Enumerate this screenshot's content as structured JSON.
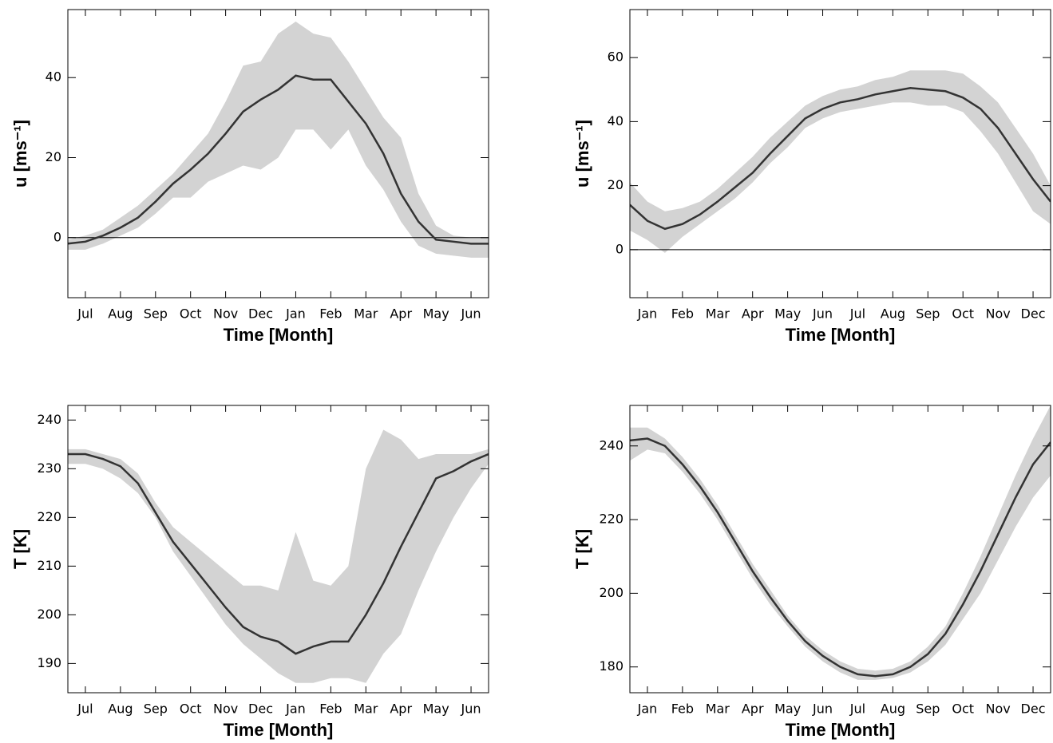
{
  "chart_data": [
    {
      "type": "line",
      "ylabel": "u [ms⁻¹]",
      "xlabel": "Time [Month]",
      "zero_line": true,
      "x": [
        0,
        0.5,
        1,
        1.5,
        2,
        2.5,
        3,
        3.5,
        4,
        4.5,
        5,
        5.5,
        6,
        6.5,
        7,
        7.5,
        8,
        8.5,
        9,
        9.5,
        10,
        10.5,
        11,
        11.5,
        12
      ],
      "xlim": [
        0,
        12
      ],
      "xticks": [
        {
          "value": 0.5,
          "label": "Jul"
        },
        {
          "value": 1.5,
          "label": "Aug"
        },
        {
          "value": 2.5,
          "label": "Sep"
        },
        {
          "value": 3.5,
          "label": "Oct"
        },
        {
          "value": 4.5,
          "label": "Nov"
        },
        {
          "value": 5.5,
          "label": "Dec"
        },
        {
          "value": 6.5,
          "label": "Jan"
        },
        {
          "value": 7.5,
          "label": "Feb"
        },
        {
          "value": 8.5,
          "label": "Mar"
        },
        {
          "value": 9.5,
          "label": "Apr"
        },
        {
          "value": 10.5,
          "label": "May"
        },
        {
          "value": 11.5,
          "label": "Jun"
        }
      ],
      "ylim": [
        -15,
        57
      ],
      "yticks": [
        0,
        20,
        40
      ],
      "band": {
        "color": "#d3d3d3",
        "lower": [
          -3,
          -3,
          -1.5,
          0.5,
          2.5,
          6,
          10,
          10,
          14,
          16,
          18,
          17,
          20,
          27,
          27,
          22,
          27,
          18,
          12,
          4,
          -2,
          -4,
          -4.5,
          -5,
          -5
        ],
        "upper": [
          -0.5,
          0.5,
          2,
          5,
          8,
          12,
          16,
          21,
          26,
          34,
          43,
          44,
          51,
          54,
          51,
          50,
          44,
          37,
          30,
          25,
          11,
          3,
          0.5,
          0,
          0
        ]
      },
      "series": [
        {
          "color": "#333333",
          "values": [
            -1.5,
            -1,
            0.5,
            2.5,
            5,
            9,
            13.5,
            17,
            21,
            26,
            31.5,
            34.5,
            37,
            40.5,
            39.5,
            39.5,
            34,
            28.5,
            21,
            11,
            4,
            -0.5,
            -1,
            -1.5,
            -1.5
          ]
        }
      ]
    },
    {
      "type": "line",
      "ylabel": "u [ms⁻¹]",
      "xlabel": "Time [Month]",
      "zero_line": true,
      "x": [
        0,
        0.5,
        1,
        1.5,
        2,
        2.5,
        3,
        3.5,
        4,
        4.5,
        5,
        5.5,
        6,
        6.5,
        7,
        7.5,
        8,
        8.5,
        9,
        9.5,
        10,
        10.5,
        11,
        11.5,
        12
      ],
      "xlim": [
        0,
        12
      ],
      "xticks": [
        {
          "value": 0.5,
          "label": "Jan"
        },
        {
          "value": 1.5,
          "label": "Feb"
        },
        {
          "value": 2.5,
          "label": "Mar"
        },
        {
          "value": 3.5,
          "label": "Apr"
        },
        {
          "value": 4.5,
          "label": "May"
        },
        {
          "value": 5.5,
          "label": "Jun"
        },
        {
          "value": 6.5,
          "label": "Jul"
        },
        {
          "value": 7.5,
          "label": "Aug"
        },
        {
          "value": 8.5,
          "label": "Sep"
        },
        {
          "value": 9.5,
          "label": "Oct"
        },
        {
          "value": 10.5,
          "label": "Nov"
        },
        {
          "value": 11.5,
          "label": "Dec"
        }
      ],
      "ylim": [
        -15,
        75
      ],
      "yticks": [
        0,
        20,
        40,
        60
      ],
      "band": {
        "color": "#d3d3d3",
        "lower": [
          6,
          3,
          -1,
          4,
          8,
          12,
          16,
          21,
          27,
          32,
          38,
          41,
          43,
          44,
          45,
          46,
          46,
          45,
          45,
          43,
          37,
          30,
          21,
          12,
          8
        ],
        "upper": [
          21,
          15,
          12,
          13,
          15,
          19,
          24,
          29,
          35,
          40,
          45,
          48,
          50,
          51,
          53,
          54,
          56,
          56,
          56,
          55,
          51,
          46,
          38,
          30,
          20
        ]
      },
      "series": [
        {
          "color": "#333333",
          "values": [
            14,
            9,
            6.5,
            8,
            11,
            15,
            19.5,
            24,
            30,
            35.5,
            41,
            44,
            46,
            47,
            48.5,
            49.5,
            50.5,
            50,
            49.5,
            47.5,
            44,
            38,
            30,
            22,
            15
          ]
        }
      ]
    },
    {
      "type": "line",
      "ylabel": "T [K]",
      "xlabel": "Time [Month]",
      "zero_line": false,
      "x": [
        0,
        0.5,
        1,
        1.5,
        2,
        2.5,
        3,
        3.5,
        4,
        4.5,
        5,
        5.5,
        6,
        6.5,
        7,
        7.5,
        8,
        8.5,
        9,
        9.5,
        10,
        10.5,
        11,
        11.5,
        12
      ],
      "xlim": [
        0,
        12
      ],
      "xticks": [
        {
          "value": 0.5,
          "label": "Jul"
        },
        {
          "value": 1.5,
          "label": "Aug"
        },
        {
          "value": 2.5,
          "label": "Sep"
        },
        {
          "value": 3.5,
          "label": "Oct"
        },
        {
          "value": 4.5,
          "label": "Nov"
        },
        {
          "value": 5.5,
          "label": "Dec"
        },
        {
          "value": 6.5,
          "label": "Jan"
        },
        {
          "value": 7.5,
          "label": "Feb"
        },
        {
          "value": 8.5,
          "label": "Mar"
        },
        {
          "value": 9.5,
          "label": "Apr"
        },
        {
          "value": 10.5,
          "label": "May"
        },
        {
          "value": 11.5,
          "label": "Jun"
        }
      ],
      "ylim": [
        184,
        243
      ],
      "yticks": [
        190,
        200,
        210,
        220,
        230,
        240
      ],
      "band": {
        "color": "#d3d3d3",
        "lower": [
          231,
          231,
          230,
          228,
          225,
          220,
          213,
          208,
          203,
          198,
          194,
          191,
          188,
          186,
          186,
          187,
          187,
          186,
          192,
          196,
          205,
          213,
          220,
          226,
          231
        ],
        "upper": [
          234,
          234,
          233,
          232,
          229,
          223,
          218,
          215,
          212,
          209,
          206,
          206,
          205,
          217,
          207,
          206,
          210,
          230,
          238,
          236,
          232,
          233,
          233,
          233,
          234
        ]
      },
      "series": [
        {
          "color": "#333333",
          "values": [
            233,
            233,
            232,
            230.5,
            227,
            221,
            215,
            210.5,
            206,
            201.5,
            197.5,
            195.5,
            194.5,
            192,
            193.5,
            194.5,
            194.5,
            200,
            206.5,
            214,
            221,
            228,
            229.5,
            231.5,
            233
          ]
        }
      ]
    },
    {
      "type": "line",
      "ylabel": "T [K]",
      "xlabel": "Time [Month]",
      "zero_line": false,
      "x": [
        0,
        0.5,
        1,
        1.5,
        2,
        2.5,
        3,
        3.5,
        4,
        4.5,
        5,
        5.5,
        6,
        6.5,
        7,
        7.5,
        8,
        8.5,
        9,
        9.5,
        10,
        10.5,
        11,
        11.5,
        12
      ],
      "xlim": [
        0,
        12
      ],
      "xticks": [
        {
          "value": 0.5,
          "label": "Jan"
        },
        {
          "value": 1.5,
          "label": "Feb"
        },
        {
          "value": 2.5,
          "label": "Mar"
        },
        {
          "value": 3.5,
          "label": "Apr"
        },
        {
          "value": 4.5,
          "label": "May"
        },
        {
          "value": 5.5,
          "label": "Jun"
        },
        {
          "value": 6.5,
          "label": "Jul"
        },
        {
          "value": 7.5,
          "label": "Aug"
        },
        {
          "value": 8.5,
          "label": "Sep"
        },
        {
          "value": 9.5,
          "label": "Oct"
        },
        {
          "value": 10.5,
          "label": "Nov"
        },
        {
          "value": 11.5,
          "label": "Dec"
        }
      ],
      "ylim": [
        173,
        251
      ],
      "yticks": [
        180,
        200,
        220,
        240
      ],
      "band": {
        "color": "#d3d3d3",
        "lower": [
          236,
          239,
          238,
          233,
          227,
          220,
          212,
          204,
          197,
          191,
          185.5,
          181.5,
          178.5,
          176.5,
          176.5,
          177,
          178.5,
          181.5,
          186,
          193,
          200,
          209,
          218,
          226,
          232
        ],
        "upper": [
          245,
          245,
          242,
          237,
          231,
          224,
          216,
          208,
          201,
          194,
          188.5,
          184.5,
          181.5,
          179.5,
          179,
          179.5,
          181.5,
          185.5,
          191,
          200,
          210,
          221,
          232,
          242,
          251
        ]
      },
      "series": [
        {
          "color": "#333333",
          "values": [
            241.5,
            242,
            240,
            235,
            229,
            222,
            214,
            206,
            199,
            192.5,
            187,
            183,
            180,
            178,
            177.5,
            178,
            180,
            183.5,
            189,
            197,
            206,
            216,
            226,
            235,
            241
          ]
        }
      ]
    }
  ]
}
